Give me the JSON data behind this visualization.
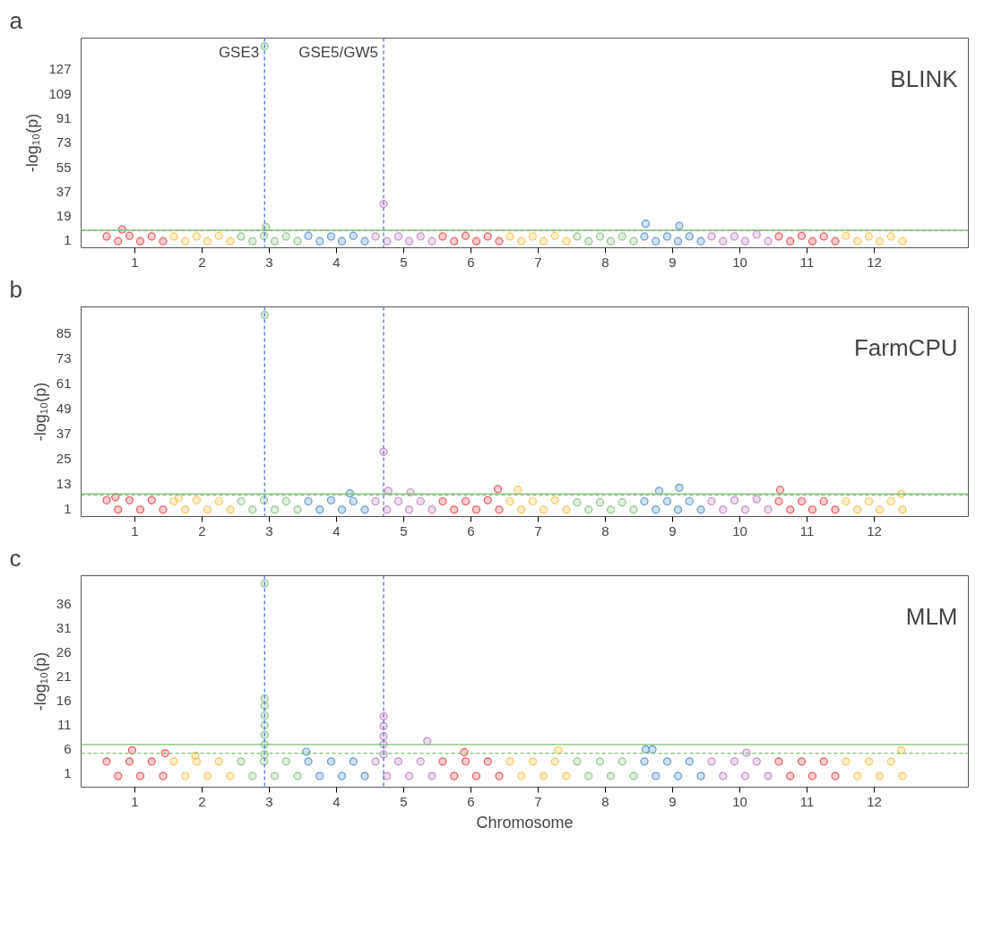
{
  "chart_data": [
    {
      "type": "scatter",
      "title": "a",
      "ylabel": "-log₁₀(p)",
      "annotations": [
        "BLINK"
      ],
      "marker": "circle",
      "xlim": [
        0.2,
        13.4
      ],
      "xticks": [
        1,
        2,
        3,
        4,
        5,
        6,
        7,
        8,
        9,
        10,
        11,
        12
      ],
      "ylim": [
        -4.3,
        150
      ],
      "yticks": [
        1,
        19,
        37,
        55,
        73,
        91,
        109,
        127
      ],
      "ref_lines": [
        {
          "axis": "x",
          "value": 2.93,
          "label": "GSE3",
          "color": "#4a78d6",
          "line_style": "dashed"
        },
        {
          "axis": "x",
          "value": 4.7,
          "label": "GSE5/GW5",
          "color": "#4a78d6",
          "line_style": "dashed"
        },
        {
          "axis": "y",
          "value": 8.7,
          "color": "#7cbf72",
          "line_style": "solid"
        },
        {
          "axis": "y",
          "value": 8.3,
          "color": "#7cbf72",
          "line_style": "dashed"
        }
      ],
      "series": [
        {
          "color": "#e8595f",
          "x": [
            0.58,
            0.75,
            0.92,
            1.08,
            1.25,
            1.42,
            0.81
          ],
          "values": [
            4,
            0.5,
            4.5,
            0.5,
            4,
            0.5,
            9.2
          ]
        },
        {
          "color": "#fac75e",
          "x": [
            1.58,
            1.75,
            1.92,
            2.08,
            2.25,
            2.42
          ],
          "values": [
            4,
            0.5,
            4,
            0.5,
            4.5,
            0.5
          ]
        },
        {
          "color": "#94c68f",
          "x": [
            2.58,
            2.75,
            2.92,
            3.08,
            3.25,
            3.42,
            2.93,
            2.95
          ],
          "values": [
            4,
            0.5,
            4.5,
            0.5,
            4,
            0.5,
            144,
            11
          ]
        },
        {
          "color": "#6398cc",
          "x": [
            3.58,
            3.75,
            3.92,
            4.08,
            4.25,
            4.42
          ],
          "values": [
            4.5,
            0.5,
            4,
            0.5,
            4.5,
            0.5
          ]
        },
        {
          "color": "#c490c5",
          "x": [
            4.58,
            4.75,
            4.92,
            5.08,
            5.25,
            5.42,
            4.7
          ],
          "values": [
            4,
            0.5,
            4,
            0.5,
            4,
            0.5,
            28
          ]
        },
        {
          "color": "#e8595f",
          "x": [
            5.58,
            5.75,
            5.92,
            6.08,
            6.25,
            6.42
          ],
          "values": [
            4,
            0.5,
            4.5,
            0.5,
            4,
            0.5
          ]
        },
        {
          "color": "#fac75e",
          "x": [
            6.58,
            6.75,
            6.92,
            7.08,
            7.25,
            7.42
          ],
          "values": [
            4,
            0.5,
            4,
            0.5,
            4.5,
            0.5
          ]
        },
        {
          "color": "#94c68f",
          "x": [
            7.58,
            7.75,
            7.92,
            8.08,
            8.25,
            8.42
          ],
          "values": [
            4,
            0.5,
            4,
            0.5,
            4,
            0.5
          ]
        },
        {
          "color": "#6398cc",
          "x": [
            8.58,
            8.75,
            8.92,
            9.08,
            9.25,
            9.42,
            8.6,
            9.1
          ],
          "values": [
            4,
            0.5,
            4,
            0.5,
            4,
            0.5,
            13.4,
            11.8
          ]
        },
        {
          "color": "#c490c5",
          "x": [
            9.58,
            9.75,
            9.92,
            10.08,
            10.25,
            10.42
          ],
          "values": [
            4,
            0.5,
            4,
            0.5,
            5.5,
            0.5
          ]
        },
        {
          "color": "#e8595f",
          "x": [
            10.58,
            10.75,
            10.92,
            11.08,
            11.25,
            11.42
          ],
          "values": [
            4,
            0.5,
            4.5,
            0.5,
            4,
            0.5
          ]
        },
        {
          "color": "#fac75e",
          "x": [
            11.58,
            11.75,
            11.92,
            12.08,
            12.25,
            12.42
          ],
          "values": [
            4.5,
            0.5,
            4,
            0.5,
            4,
            0.5
          ]
        }
      ]
    },
    {
      "type": "scatter",
      "title": "b",
      "ylabel": "-log₁₀(p)",
      "annotations": [
        "FarmCPU"
      ],
      "marker": "circle",
      "xlim": [
        0.2,
        13.4
      ],
      "xticks": [
        1,
        2,
        3,
        4,
        5,
        6,
        7,
        8,
        9,
        10,
        11,
        12
      ],
      "ylim": [
        -2.8,
        97.7
      ],
      "yticks": [
        1,
        13,
        25,
        37,
        49,
        61,
        73,
        85
      ],
      "ref_lines": [
        {
          "axis": "x",
          "value": 2.93,
          "color": "#4a78d6",
          "line_style": "dashed"
        },
        {
          "axis": "x",
          "value": 4.7,
          "color": "#4a78d6",
          "line_style": "dashed"
        },
        {
          "axis": "y",
          "value": 8.1,
          "color": "#7cbf72",
          "line_style": "solid"
        },
        {
          "axis": "y",
          "value": 7.6,
          "color": "#7cbf72",
          "line_style": "dashed"
        }
      ],
      "series": [
        {
          "color": "#e8595f",
          "x": [
            0.58,
            0.75,
            0.92,
            1.08,
            1.25,
            1.42,
            0.71
          ],
          "values": [
            5,
            0.5,
            5,
            0.5,
            5,
            0.5,
            6.5
          ]
        },
        {
          "color": "#fac75e",
          "x": [
            1.58,
            1.75,
            1.92,
            2.08,
            2.25,
            2.42,
            1.65
          ],
          "values": [
            4.5,
            0.5,
            5,
            0.5,
            4.5,
            0.5,
            6
          ]
        },
        {
          "color": "#94c68f",
          "x": [
            2.58,
            2.75,
            2.92,
            3.08,
            3.25,
            3.42,
            2.93
          ],
          "values": [
            4.5,
            0.5,
            5,
            0.5,
            4.5,
            0.5,
            93.8
          ]
        },
        {
          "color": "#6398cc",
          "x": [
            3.58,
            3.75,
            3.92,
            4.08,
            4.25,
            4.42,
            4.2
          ],
          "values": [
            4.5,
            0.5,
            5,
            0.5,
            4.5,
            0.5,
            8.3
          ]
        },
        {
          "color": "#c490c5",
          "x": [
            4.58,
            4.75,
            4.92,
            5.08,
            5.25,
            5.42,
            4.7,
            4.77,
            5.1
          ],
          "values": [
            4.5,
            0.5,
            4.5,
            0.5,
            4.5,
            0.5,
            28.2,
            9.5,
            8.8
          ]
        },
        {
          "color": "#e8595f",
          "x": [
            5.58,
            5.75,
            5.92,
            6.08,
            6.25,
            6.42,
            6.4
          ],
          "values": [
            4.5,
            0.5,
            4.5,
            0.5,
            5,
            0.5,
            10.4
          ]
        },
        {
          "color": "#fac75e",
          "x": [
            6.58,
            6.75,
            6.92,
            7.08,
            7.25,
            7.42,
            6.7
          ],
          "values": [
            4.5,
            0.5,
            4.5,
            0.5,
            5,
            0.5,
            10
          ]
        },
        {
          "color": "#94c68f",
          "x": [
            7.58,
            7.75,
            7.92,
            8.08,
            8.25,
            8.42
          ],
          "values": [
            4,
            0.5,
            4,
            0.5,
            4,
            0.5
          ]
        },
        {
          "color": "#6398cc",
          "x": [
            8.58,
            8.75,
            8.92,
            9.08,
            9.25,
            9.42,
            8.8,
            9.1
          ],
          "values": [
            4.5,
            0.5,
            4.5,
            0.5,
            4.5,
            0.5,
            9.5,
            11
          ]
        },
        {
          "color": "#c490c5",
          "x": [
            9.58,
            9.75,
            9.92,
            10.08,
            10.25,
            10.42
          ],
          "values": [
            4.5,
            0.5,
            5,
            0.5,
            5.5,
            0.5
          ]
        },
        {
          "color": "#e8595f",
          "x": [
            10.58,
            10.75,
            10.92,
            11.08,
            11.25,
            11.42,
            10.6
          ],
          "values": [
            4.5,
            0.5,
            4.5,
            0.5,
            4.5,
            0.5,
            10
          ]
        },
        {
          "color": "#fac75e",
          "x": [
            11.58,
            11.75,
            11.92,
            12.08,
            12.25,
            12.42,
            12.4
          ],
          "values": [
            4.5,
            0.5,
            4.5,
            0.5,
            4.5,
            0.5,
            8
          ]
        }
      ]
    },
    {
      "type": "scatter",
      "title": "c",
      "xlabel": "Chromosome",
      "ylabel": "-log₁₀(p)",
      "annotations": [
        "MLM"
      ],
      "marker": "circle",
      "xlim": [
        0.2,
        13.4
      ],
      "xticks": [
        1,
        2,
        3,
        4,
        5,
        6,
        7,
        8,
        9,
        10,
        11,
        12
      ],
      "ylim": [
        -1.8,
        41.8
      ],
      "yticks": [
        1,
        6,
        11,
        16,
        21,
        26,
        31,
        36
      ],
      "ref_lines": [
        {
          "axis": "x",
          "value": 2.93,
          "color": "#4a78d6",
          "line_style": "dashed"
        },
        {
          "axis": "x",
          "value": 4.7,
          "color": "#4a78d6",
          "line_style": "dashed"
        },
        {
          "axis": "y",
          "value": 7,
          "color": "#7cbf72",
          "line_style": "solid"
        },
        {
          "axis": "y",
          "value": 5.2,
          "color": "#7cbf72",
          "line_style": "dashed"
        }
      ],
      "series": [
        {
          "color": "#e8595f",
          "x": [
            0.58,
            0.75,
            0.92,
            1.08,
            1.25,
            1.42,
            0.96,
            1.45
          ],
          "values": [
            3.5,
            0.5,
            3.5,
            0.5,
            3.5,
            0.5,
            5.8,
            5.2
          ]
        },
        {
          "color": "#fac75e",
          "x": [
            1.58,
            1.75,
            1.92,
            2.08,
            2.25,
            2.42,
            1.9
          ],
          "values": [
            3.5,
            0.5,
            3.5,
            0.5,
            3.5,
            0.5,
            4.7
          ]
        },
        {
          "color": "#94c68f",
          "x": [
            2.58,
            2.75,
            2.92,
            3.08,
            3.25,
            3.42,
            2.93,
            2.93,
            2.93,
            2.93,
            2.93,
            2.93,
            2.93,
            2.93
          ],
          "values": [
            3.5,
            0.5,
            3.5,
            0.5,
            3.5,
            0.5,
            40.2,
            16.5,
            15,
            13,
            11,
            9,
            7,
            5
          ]
        },
        {
          "color": "#6398cc",
          "x": [
            3.58,
            3.75,
            3.92,
            4.08,
            4.25,
            4.42,
            3.55
          ],
          "values": [
            3.5,
            0.5,
            3.5,
            0.5,
            3.5,
            0.5,
            5.5
          ]
        },
        {
          "color": "#c490c5",
          "x": [
            4.58,
            4.75,
            4.92,
            5.08,
            5.25,
            5.42,
            4.7,
            4.7,
            4.7,
            4.7,
            4.7,
            5.35
          ],
          "values": [
            3.5,
            0.5,
            3.5,
            0.5,
            3.5,
            0.5,
            12.8,
            10.8,
            8.7,
            7,
            5,
            7.7
          ]
        },
        {
          "color": "#e8595f",
          "x": [
            5.58,
            5.75,
            5.92,
            6.08,
            6.25,
            6.42,
            5.9
          ],
          "values": [
            3.5,
            0.5,
            3.5,
            0.5,
            3.5,
            0.5,
            5.4
          ]
        },
        {
          "color": "#fac75e",
          "x": [
            6.58,
            6.75,
            6.92,
            7.08,
            7.25,
            7.42,
            7.3
          ],
          "values": [
            3.5,
            0.5,
            3.5,
            0.5,
            3.5,
            0.5,
            5.8
          ]
        },
        {
          "color": "#94c68f",
          "x": [
            7.58,
            7.75,
            7.92,
            8.08,
            8.25,
            8.42
          ],
          "values": [
            3.5,
            0.5,
            3.5,
            0.5,
            3.5,
            0.5
          ]
        },
        {
          "color": "#6398cc",
          "x": [
            8.58,
            8.75,
            8.92,
            9.08,
            9.25,
            9.42,
            8.6,
            8.7
          ],
          "values": [
            3.5,
            0.5,
            3.5,
            0.5,
            3.5,
            0.5,
            6,
            6
          ]
        },
        {
          "color": "#c490c5",
          "x": [
            9.58,
            9.75,
            9.92,
            10.08,
            10.25,
            10.42,
            10.1
          ],
          "values": [
            3.5,
            0.5,
            3.5,
            0.5,
            3.5,
            0.5,
            5.3
          ]
        },
        {
          "color": "#e8595f",
          "x": [
            10.58,
            10.75,
            10.92,
            11.08,
            11.25,
            11.42
          ],
          "values": [
            3.5,
            0.5,
            3.5,
            0.5,
            3.5,
            0.5
          ]
        },
        {
          "color": "#fac75e",
          "x": [
            11.58,
            11.75,
            11.92,
            12.08,
            12.25,
            12.42,
            12.4
          ],
          "values": [
            3.5,
            0.5,
            3.5,
            0.5,
            3.5,
            0.5,
            5.8
          ]
        }
      ]
    }
  ]
}
